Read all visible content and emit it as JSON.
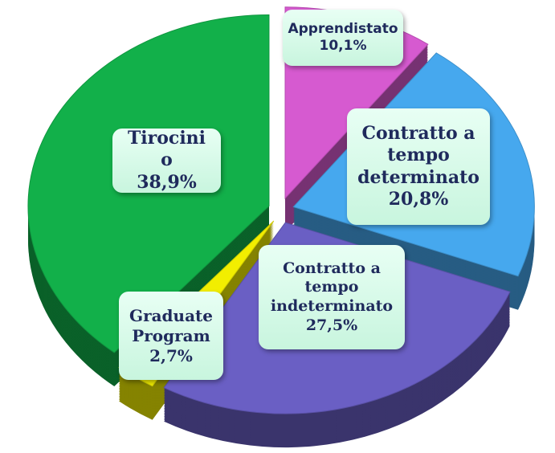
{
  "chart_data": {
    "type": "pie",
    "categories": [
      "Apprendistato",
      "Contratto a tempo determinato",
      "Contratto a tempo indeterminato",
      "Graduate Program",
      "Tirocini o"
    ],
    "values": [
      10.1,
      20.8,
      27.5,
      2.7,
      38.9
    ],
    "value_labels": [
      "10,1%",
      "20,8%",
      "27,5%",
      "2,7%",
      "38,9%"
    ],
    "colors": [
      "#d65ad0",
      "#46a8ee",
      "#6a5fc4",
      "#f2ee00",
      "#12b04a"
    ]
  }
}
